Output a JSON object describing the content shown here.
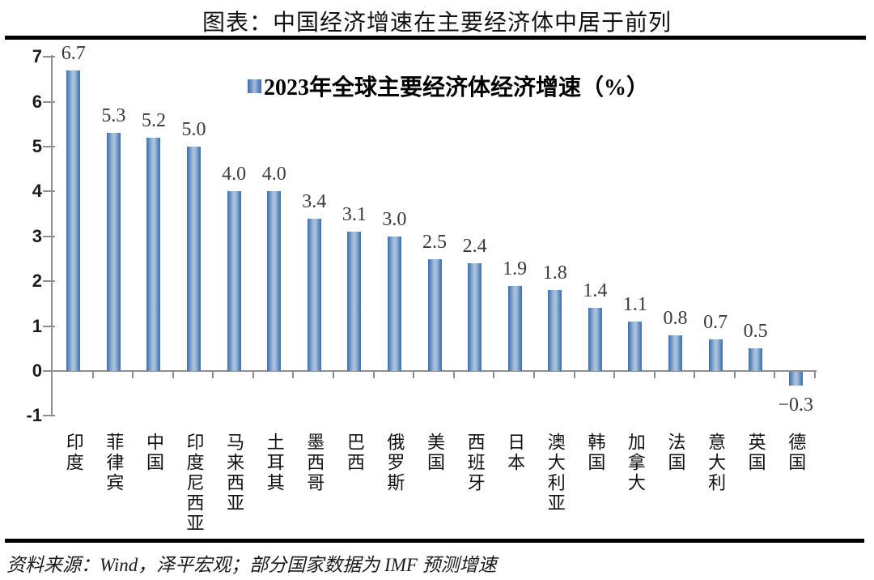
{
  "header": {
    "title": "图表：中国经济增速在主要经济体中居于前列"
  },
  "footer": {
    "source_note": "资料来源：Wind，泽平宏观；部分国家数据为 IMF 预测增速"
  },
  "chart_data": {
    "type": "bar",
    "title": "图表：中国经济增速在主要经济体中居于前列",
    "legend": {
      "label": "2023年全球主要经济体经济增速（%）",
      "position": "top-center",
      "marker": "gradient-blue-square"
    },
    "categories": [
      "印度",
      "菲律宾",
      "中国",
      "印度尼西亚",
      "马来西亚",
      "土耳其",
      "墨西哥",
      "巴西",
      "俄罗斯",
      "美国",
      "西班牙",
      "日本",
      "澳大利亚",
      "韩国",
      "加拿大",
      "法国",
      "意大利",
      "英国",
      "德国"
    ],
    "values": [
      6.7,
      5.3,
      5.2,
      5.0,
      4.0,
      4.0,
      3.4,
      3.1,
      3.0,
      2.5,
      2.4,
      1.9,
      1.8,
      1.4,
      1.1,
      0.8,
      0.7,
      0.5,
      -0.3
    ],
    "value_labels": [
      "6.7",
      "5.3",
      "5.2",
      "5.0",
      "4.0",
      "4.0",
      "3.4",
      "3.1",
      "3.0",
      "2.5",
      "2.4",
      "1.9",
      "1.8",
      "1.4",
      "1.1",
      "0.8",
      "0.7",
      "0.5",
      "−0.3"
    ],
    "xlabel": "",
    "ylabel": "",
    "y_axis": {
      "min": -1,
      "max": 7,
      "tick_interval": 1,
      "tick_labels": [
        "7",
        "6",
        "5",
        "4",
        "3",
        "2",
        "1",
        "0",
        "-1"
      ]
    },
    "grid": false,
    "category_label_orientation": "vertical-upright",
    "colors": {
      "bar_edge": "#3D6EB0",
      "bar_center": "#A3BCD9",
      "axis": "#8F8F8F",
      "value_label": "#3A3A3A",
      "text": "#111111",
      "rule": "#000000",
      "background": "#FFFFFF"
    }
  }
}
